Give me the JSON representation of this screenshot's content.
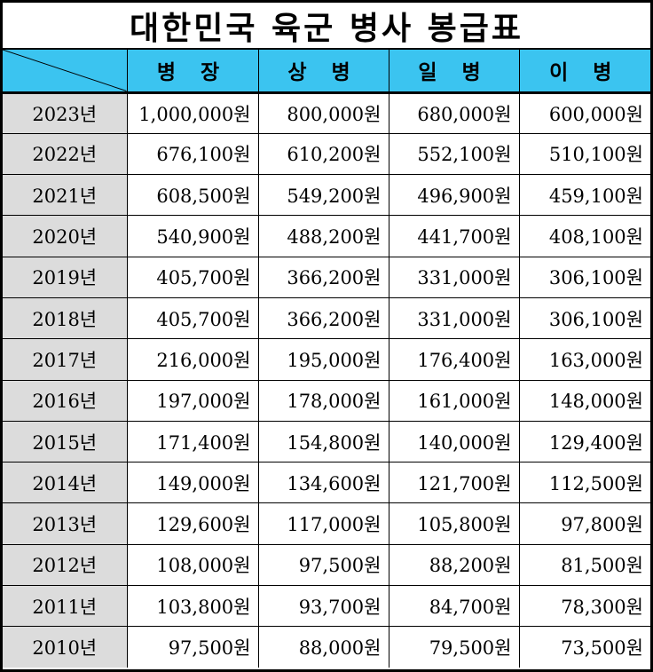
{
  "title": "대한민국 육군 병사 봉급표",
  "columns": [
    "병 장",
    "상 병",
    "일 병",
    "이 병"
  ],
  "header_color": "#3bc4f0",
  "year_cell_color": "#dcdcdc",
  "rows": [
    {
      "year": "2023년",
      "values": [
        "1,000,000원",
        "800,000원",
        "680,000원",
        "600,000원"
      ]
    },
    {
      "year": "2022년",
      "values": [
        "676,100원",
        "610,200원",
        "552,100원",
        "510,100원"
      ]
    },
    {
      "year": "2021년",
      "values": [
        "608,500원",
        "549,200원",
        "496,900원",
        "459,100원"
      ]
    },
    {
      "year": "2020년",
      "values": [
        "540,900원",
        "488,200원",
        "441,700원",
        "408,100원"
      ]
    },
    {
      "year": "2019년",
      "values": [
        "405,700원",
        "366,200원",
        "331,000원",
        "306,100원"
      ]
    },
    {
      "year": "2018년",
      "values": [
        "405,700원",
        "366,200원",
        "331,000원",
        "306,100원"
      ]
    },
    {
      "year": "2017년",
      "values": [
        "216,000원",
        "195,000원",
        "176,400원",
        "163,000원"
      ]
    },
    {
      "year": "2016년",
      "values": [
        "197,000원",
        "178,000원",
        "161,000원",
        "148,000원"
      ]
    },
    {
      "year": "2015년",
      "values": [
        "171,400원",
        "154,800원",
        "140,000원",
        "129,400원"
      ]
    },
    {
      "year": "2014년",
      "values": [
        "149,000원",
        "134,600원",
        "121,700원",
        "112,500원"
      ]
    },
    {
      "year": "2013년",
      "values": [
        "129,600원",
        "117,000원",
        "105,800원",
        "97,800원"
      ]
    },
    {
      "year": "2012년",
      "values": [
        "108,000원",
        "97,500원",
        "88,200원",
        "81,500원"
      ]
    },
    {
      "year": "2011년",
      "values": [
        "103,800원",
        "93,700원",
        "84,700원",
        "78,300원"
      ]
    },
    {
      "year": "2010년",
      "values": [
        "97,500원",
        "88,000원",
        "79,500원",
        "73,500원"
      ]
    }
  ]
}
